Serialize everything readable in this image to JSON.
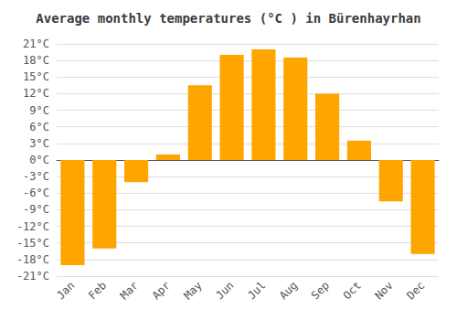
{
  "chart_data": {
    "type": "bar",
    "title": "Average monthly temperatures (°C ) in Bürenhayrhan",
    "categories": [
      "Jan",
      "Feb",
      "Mar",
      "Apr",
      "May",
      "Jun",
      "Jul",
      "Aug",
      "Sep",
      "Oct",
      "Nov",
      "Dec"
    ],
    "values": [
      -19,
      -16,
      -4,
      1,
      13.5,
      19,
      20,
      18.5,
      12,
      3.5,
      -7.5,
      -17
    ],
    "color": "#FFA500",
    "ylim": [
      -21,
      21
    ],
    "yticks": [
      {
        "value": -21,
        "label": "-21°C"
      },
      {
        "value": -18,
        "label": "-18°C"
      },
      {
        "value": -15,
        "label": "-15°C"
      },
      {
        "value": -12,
        "label": "-12°C"
      },
      {
        "value": -9,
        "label": "-9°C"
      },
      {
        "value": -6,
        "label": "-6°C"
      },
      {
        "value": -3,
        "label": "-3°C"
      },
      {
        "value": 0,
        "label": "0°C"
      },
      {
        "value": 3,
        "label": "3°C"
      },
      {
        "value": 6,
        "label": "6°C"
      },
      {
        "value": 9,
        "label": "9°C"
      },
      {
        "value": 12,
        "label": "12°C"
      },
      {
        "value": 15,
        "label": "15°C"
      },
      {
        "value": 18,
        "label": "18°C"
      },
      {
        "value": 21,
        "label": "21°C"
      }
    ],
    "grid": true
  }
}
